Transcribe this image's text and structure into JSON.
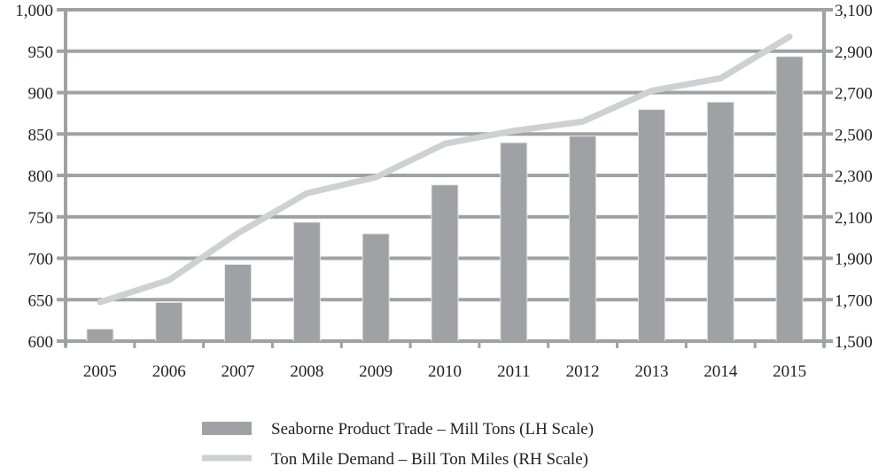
{
  "chart_data": {
    "type": "bar+line",
    "categories": [
      "2005",
      "2006",
      "2007",
      "2008",
      "2009",
      "2010",
      "2011",
      "2012",
      "2013",
      "2014",
      "2015"
    ],
    "series": [
      {
        "name": "Seaborne Product Trade – Mill Tons (LH Scale)",
        "type": "bar",
        "axis": "left",
        "values": [
          614,
          646,
          692,
          743,
          729,
          788,
          839,
          847,
          879,
          888,
          943
        ],
        "color": "#a0a1a5"
      },
      {
        "name": "Ton Mile Demand – Bill Ton Miles (RH Scale)",
        "type": "line",
        "axis": "right",
        "values": [
          1688,
          1795,
          2021,
          2214,
          2291,
          2453,
          2515,
          2560,
          2709,
          2769,
          2970
        ],
        "color": "#cfd0d2"
      }
    ],
    "left_axis": {
      "ylim": [
        600,
        1000
      ],
      "ticks": [
        "600",
        "650",
        "700",
        "750",
        "800",
        "850",
        "900",
        "950",
        "1,000"
      ]
    },
    "right_axis": {
      "ylim": [
        1500,
        3100
      ],
      "ticks": [
        "1,500",
        "1,700",
        "1,900",
        "2,100",
        "2,300",
        "2,500",
        "2,700",
        "2,900",
        "3,100"
      ]
    },
    "grid": true,
    "grid_color": "#a0a1a5",
    "legend_position": "bottom"
  }
}
